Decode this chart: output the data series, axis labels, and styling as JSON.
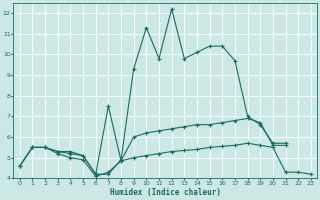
{
  "xlabel": "Humidex (Indice chaleur)",
  "background_color": "#cce8e5",
  "grid_color": "#b8d8d5",
  "line_color": "#1a6b62",
  "xlim": [
    -0.5,
    23.5
  ],
  "ylim": [
    4,
    12.5
  ],
  "yticks": [
    4,
    5,
    6,
    7,
    8,
    9,
    10,
    11,
    12
  ],
  "xticks": [
    0,
    1,
    2,
    3,
    4,
    5,
    6,
    7,
    8,
    9,
    10,
    11,
    12,
    13,
    14,
    15,
    16,
    17,
    18,
    19,
    20,
    21,
    22,
    23
  ],
  "line1_y": [
    4.6,
    5.5,
    5.5,
    5.3,
    5.3,
    5.1,
    4.2,
    4.2,
    4.9,
    9.3,
    11.3,
    9.8,
    12.2,
    9.8,
    10.1,
    10.4,
    10.4,
    9.7,
    7.0,
    6.6,
    5.7,
    5.7,
    null,
    null
  ],
  "line2_y": [
    4.6,
    5.5,
    5.5,
    5.3,
    5.2,
    5.1,
    4.2,
    7.5,
    4.85,
    6.0,
    6.2,
    6.3,
    6.4,
    6.5,
    6.6,
    6.6,
    6.7,
    6.8,
    6.9,
    6.7,
    5.6,
    5.6,
    null,
    null
  ],
  "line3_y": [
    4.6,
    5.5,
    5.5,
    5.2,
    5.0,
    4.9,
    4.1,
    4.3,
    4.85,
    5.0,
    5.1,
    5.2,
    5.3,
    5.35,
    5.4,
    5.5,
    5.55,
    5.6,
    5.7,
    5.6,
    5.5,
    4.3,
    4.3,
    4.2
  ]
}
